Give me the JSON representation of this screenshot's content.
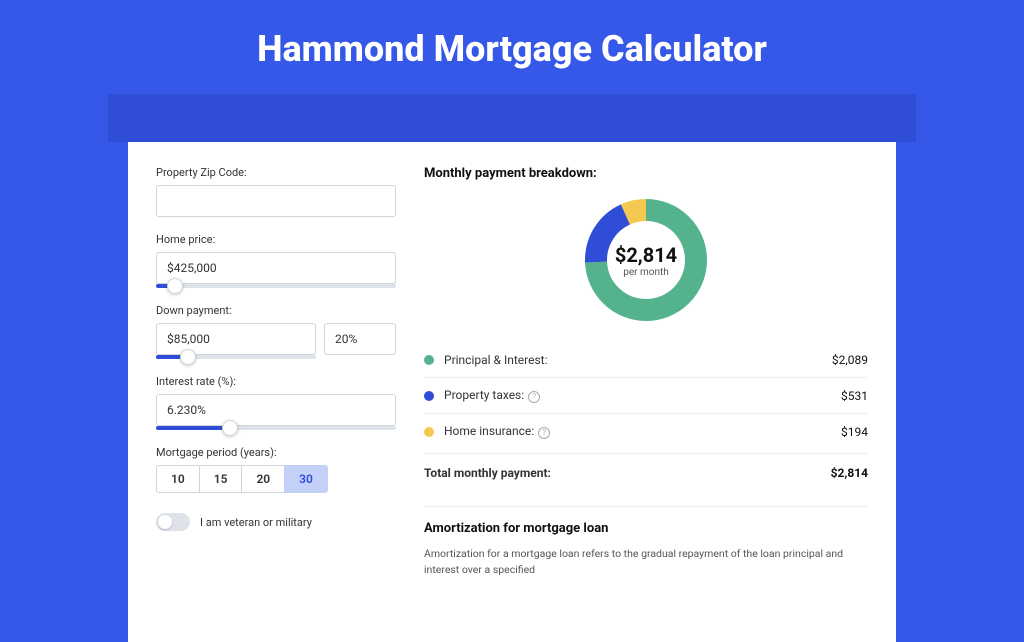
{
  "colors": {
    "bg": "#3558e8",
    "banner": "#2f4dd6",
    "card": "#ffffff",
    "border": "#d0d4d9",
    "text": "#333333"
  },
  "title": "Hammond Mortgage Calculator",
  "form": {
    "zip": {
      "label": "Property Zip Code:",
      "value": ""
    },
    "home_price": {
      "label": "Home price:",
      "value": "$425,000",
      "slider_pct": 8
    },
    "down_payment": {
      "label": "Down payment:",
      "value": "$85,000",
      "pct": "20%",
      "slider_pct": 20
    },
    "interest_rate": {
      "label": "Interest rate (%):",
      "value": "6.230%",
      "slider_pct": 31
    },
    "period": {
      "label": "Mortgage period (years):",
      "options": [
        "10",
        "15",
        "20",
        "30"
      ],
      "selected": "30"
    },
    "veteran": {
      "label": "I am veteran or military",
      "checked": false
    }
  },
  "breakdown": {
    "title": "Monthly payment breakdown:",
    "donut": {
      "center_amount": "$2,814",
      "center_sub": "per month",
      "slices": [
        {
          "label": "Principal & Interest:",
          "value": "$2,089",
          "color": "#54b28d",
          "pct": 74.2
        },
        {
          "label": "Property taxes:",
          "value": "$531",
          "color": "#2f4dd6",
          "pct": 18.9,
          "info": true
        },
        {
          "label": "Home insurance:",
          "value": "$194",
          "color": "#f3c94f",
          "pct": 6.9,
          "info": true
        }
      ]
    },
    "total": {
      "label": "Total monthly payment:",
      "value": "$2,814"
    }
  },
  "amortization": {
    "title": "Amortization for mortgage loan",
    "text": "Amortization for a mortgage loan refers to the gradual repayment of the loan principal and interest over a specified"
  }
}
